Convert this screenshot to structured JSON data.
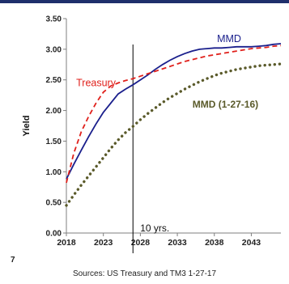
{
  "page": {
    "source_text": "Sources: US Treasury and TM3 1-27-17",
    "margin_number": "7"
  },
  "chart_data": {
    "type": "line",
    "title": "",
    "xlabel": "",
    "ylabel": "Yield",
    "xlim": [
      2018,
      2047
    ],
    "ylim": [
      0,
      3.5
    ],
    "x_ticks": [
      2018,
      2023,
      2028,
      2033,
      2038,
      2043
    ],
    "y_ticks": [
      "0.00",
      "0.50",
      "1.00",
      "1.50",
      "2.00",
      "2.50",
      "3.00",
      "3.50"
    ],
    "grid": false,
    "reference_line": {
      "x": 2027,
      "label": "10 yrs."
    },
    "series": [
      {
        "name": "MMD",
        "color": "#1a1f8c",
        "style": "solid",
        "x": [
          2018,
          2019,
          2020,
          2021,
          2022,
          2023,
          2024,
          2025,
          2026,
          2027,
          2028,
          2029,
          2030,
          2031,
          2032,
          2033,
          2034,
          2035,
          2036,
          2037,
          2038,
          2039,
          2040,
          2041,
          2042,
          2043,
          2044,
          2045,
          2046,
          2047
        ],
        "values": [
          0.88,
          1.12,
          1.35,
          1.57,
          1.78,
          1.97,
          2.12,
          2.27,
          2.35,
          2.42,
          2.5,
          2.58,
          2.67,
          2.75,
          2.82,
          2.88,
          2.93,
          2.97,
          3.0,
          3.01,
          3.02,
          3.02,
          3.03,
          3.04,
          3.04,
          3.04,
          3.05,
          3.06,
          3.08,
          3.09
        ]
      },
      {
        "name": "Treasury",
        "color": "#e0201b",
        "style": "dashed",
        "x": [
          2018,
          2019,
          2020,
          2021,
          2022,
          2023,
          2024,
          2025,
          2026,
          2027,
          2028,
          2029,
          2030,
          2031,
          2032,
          2033,
          2034,
          2035,
          2036,
          2037,
          2038,
          2039,
          2040,
          2041,
          2042,
          2043,
          2044,
          2045,
          2046,
          2047
        ],
        "values": [
          0.82,
          1.3,
          1.65,
          1.9,
          2.12,
          2.3,
          2.4,
          2.45,
          2.49,
          2.52,
          2.56,
          2.6,
          2.64,
          2.68,
          2.72,
          2.76,
          2.8,
          2.83,
          2.86,
          2.89,
          2.91,
          2.93,
          2.95,
          2.97,
          2.99,
          3.01,
          3.02,
          3.03,
          3.05,
          3.06
        ]
      },
      {
        "name": "MMD (1-27-16)",
        "color": "#5a5a2a",
        "style": "dotted",
        "x": [
          2018,
          2019,
          2020,
          2021,
          2022,
          2023,
          2024,
          2025,
          2026,
          2027,
          2028,
          2029,
          2030,
          2031,
          2032,
          2033,
          2034,
          2035,
          2036,
          2037,
          2038,
          2039,
          2040,
          2041,
          2042,
          2043,
          2044,
          2045,
          2046,
          2047
        ],
        "values": [
          0.45,
          0.62,
          0.78,
          0.93,
          1.08,
          1.23,
          1.38,
          1.52,
          1.64,
          1.74,
          1.85,
          1.95,
          2.04,
          2.13,
          2.21,
          2.28,
          2.35,
          2.41,
          2.47,
          2.52,
          2.57,
          2.61,
          2.64,
          2.67,
          2.69,
          2.71,
          2.73,
          2.74,
          2.75,
          2.76
        ]
      }
    ],
    "series_labels": [
      {
        "text": "MMD",
        "x": 2040,
        "y": 3.12,
        "color": "#1a1f8c",
        "bold": false
      },
      {
        "text": "Treasury",
        "x": 2022,
        "y": 2.4,
        "color": "#e0201b",
        "bold": false
      },
      {
        "text": "MMD (1-27-16)",
        "x": 2039.5,
        "y": 2.05,
        "color": "#5a5a2a",
        "bold": true
      }
    ]
  }
}
